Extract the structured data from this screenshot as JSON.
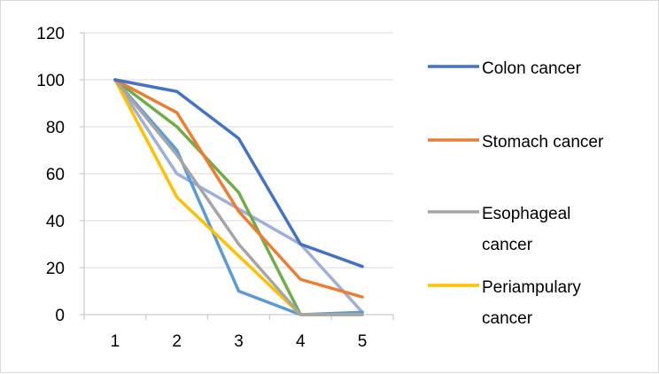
{
  "chart_data": {
    "type": "line",
    "x": [
      1,
      2,
      3,
      4,
      5
    ],
    "x_tick_labels": [
      "1",
      "2",
      "3",
      "4",
      "5"
    ],
    "y_tick_labels": [
      "0",
      "20",
      "40",
      "60",
      "80",
      "100",
      "120"
    ],
    "ylim": [
      0,
      120
    ],
    "grid": "horizontal",
    "legend_position": "right",
    "series": [
      {
        "name": "Colon cancer",
        "color": "#4472C4",
        "values": [
          100,
          95,
          75,
          30,
          20.5
        ],
        "legend_lines": [
          "Colon cancer"
        ]
      },
      {
        "name": "Stomach cancer",
        "color": "#ED7D31",
        "values": [
          100,
          86,
          44,
          15,
          7.5
        ],
        "legend_lines": [
          "Stomach cancer"
        ]
      },
      {
        "name": "Esophageal cancer",
        "color": "#A5A5A5",
        "values": [
          100,
          68,
          30,
          0,
          0
        ],
        "legend_lines": [
          "Esophageal",
          "cancer"
        ]
      },
      {
        "name": "Periampulary cancer",
        "color": "#FFC000",
        "values": [
          100,
          50,
          25,
          0,
          0
        ],
        "legend_lines": [
          "Periampulary",
          "cancer"
        ]
      },
      {
        "color": "#5B9BD5",
        "values": [
          100,
          70,
          10,
          0,
          1
        ]
      },
      {
        "color": "#70AD47",
        "values": [
          100,
          80,
          52,
          0,
          0
        ]
      },
      {
        "color": "#9DB0DC",
        "values": [
          100,
          60,
          45,
          30,
          1
        ]
      }
    ]
  }
}
